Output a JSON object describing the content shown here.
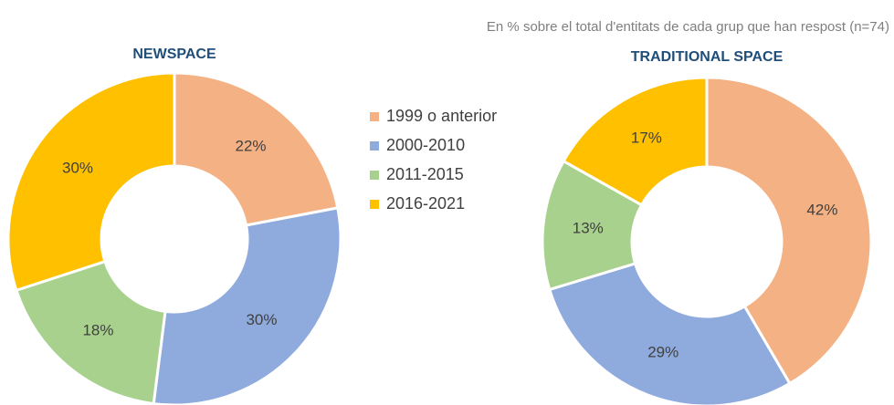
{
  "subtitle": "En % sobre el total d'entitats de cada grup que han respost (n=74)",
  "legend": {
    "categories": [
      "1999 o anterior",
      "2000-2010",
      "2011-2015",
      "2016-2021"
    ],
    "colors": [
      "#f4b183",
      "#8faadc",
      "#a9d18e",
      "#ffc000"
    ]
  },
  "chart_data": [
    {
      "type": "pie",
      "title": "NEWSPACE",
      "values": [
        22,
        30,
        18,
        30
      ],
      "value_labels": [
        "22%",
        "30%",
        "18%",
        "30%"
      ]
    },
    {
      "type": "pie",
      "title": "TRADITIONAL SPACE",
      "values": [
        42,
        29,
        13,
        17
      ],
      "value_labels": [
        "42%",
        "29%",
        "13%",
        "17%"
      ]
    }
  ]
}
